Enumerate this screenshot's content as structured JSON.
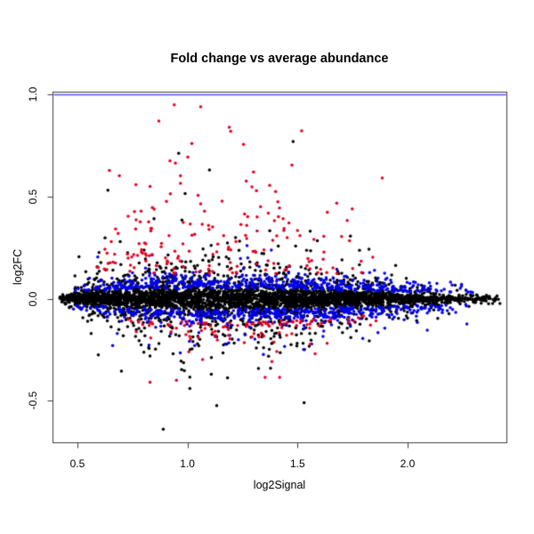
{
  "chart": {
    "title": "Fold change vs average abundance",
    "x_axis": {
      "label": "log2Signal",
      "tick_labels": [
        "0.5",
        "1.0",
        "1.5",
        "2.0"
      ],
      "tick_values": [
        0.5,
        1.0,
        1.5,
        2.0
      ]
    },
    "y_axis": {
      "label": "log2FC",
      "tick_labels": [
        "1.0",
        "0.5",
        "0.0",
        "-0.5"
      ],
      "tick_values": [
        1.0,
        0.5,
        0.0,
        -0.5
      ]
    },
    "reference_line": {
      "y": 1.0,
      "color": "#4d4df2"
    },
    "frame_color": "#3c3c3c",
    "text_color": "#000000"
  },
  "chart_data": {
    "type": "scatter",
    "title": "Fold change vs average abundance",
    "xlabel": "log2Signal",
    "ylabel": "log2FC",
    "xlim": [
      0.387,
      2.449
    ],
    "ylim": [
      -0.704,
      1.014
    ],
    "grid": false,
    "legend": "none",
    "point_radius_px": 1.75,
    "seed": 42,
    "envelope": [
      [
        0.42,
        0.16
      ],
      [
        0.55,
        0.38
      ],
      [
        0.7,
        0.72
      ],
      [
        0.9,
        0.95
      ],
      [
        1.1,
        1.0
      ],
      [
        1.35,
        0.95
      ],
      [
        1.55,
        0.8
      ],
      [
        1.75,
        0.6
      ],
      [
        1.95,
        0.42
      ],
      [
        2.15,
        0.26
      ],
      [
        2.3,
        0.17
      ],
      [
        2.42,
        0.1
      ]
    ],
    "series": [
      {
        "name": "black",
        "color": "#000000",
        "n": 4000,
        "x_density": [
          [
            0.42,
            0.25
          ],
          [
            0.5,
            0.9
          ],
          [
            0.6,
            1.0
          ],
          [
            1.6,
            1.0
          ],
          [
            1.8,
            0.85
          ],
          [
            2.0,
            0.55
          ],
          [
            2.2,
            0.3
          ],
          [
            2.42,
            0.08
          ]
        ],
        "y_model": {
          "kind": "mixture",
          "components": [
            {
              "p": 0.6,
              "sigma": 0.032
            },
            {
              "p": 0.315,
              "sigma": 0.09
            },
            {
              "p": 0.077,
              "sigma": 0.2
            },
            {
              "p": 0.008,
              "sigma": 0.33
            }
          ]
        }
      },
      {
        "name": "blue",
        "color": "#0000ee",
        "n": 1000,
        "x_density": [
          [
            0.48,
            0.15
          ],
          [
            0.6,
            0.5
          ],
          [
            0.8,
            0.8
          ],
          [
            1.0,
            0.95
          ],
          [
            1.2,
            1.0
          ],
          [
            1.7,
            1.0
          ],
          [
            1.9,
            0.8
          ],
          [
            2.05,
            0.5
          ],
          [
            2.3,
            0.12
          ]
        ],
        "y_model": {
          "kind": "band",
          "base": 0.045,
          "sigma": 0.038,
          "jitter": 0.01,
          "scale_min": 0.45,
          "scale_env": 0.6,
          "stray_p": 0.03,
          "stray_min": 0.16,
          "stray_range": 0.12
        }
      },
      {
        "name": "red",
        "color": "#e60020",
        "n": 280,
        "above_fraction": 0.62,
        "x_density_above": [
          [
            0.58,
            0.3
          ],
          [
            0.8,
            0.9
          ],
          [
            1.0,
            1.0
          ],
          [
            1.2,
            0.9
          ],
          [
            1.4,
            0.7
          ],
          [
            1.6,
            0.4
          ],
          [
            1.8,
            0.18
          ],
          [
            2.05,
            0.05
          ]
        ],
        "x_density_below": [
          [
            0.72,
            0.3
          ],
          [
            0.9,
            0.8
          ],
          [
            1.1,
            1.0
          ],
          [
            1.4,
            0.9
          ],
          [
            1.6,
            0.6
          ],
          [
            1.8,
            0.3
          ],
          [
            2.0,
            0.1
          ]
        ],
        "y_model": {
          "kind": "updown",
          "above": {
            "min": 0.12,
            "sigma": 0.26,
            "cap": 0.9,
            "scale_min": 0.45,
            "scale_env": 0.55
          },
          "below": {
            "base": 0.115,
            "sigma": 0.05,
            "deep_p": 0.08,
            "deep_min": 0.25,
            "deep_range": 0.17,
            "scale_min": 0.35,
            "scale_env": 0.65
          }
        }
      }
    ],
    "outliers": [
      {
        "color": "#e60020",
        "points": [
          [
            0.94,
            0.95
          ],
          [
            1.06,
            0.94
          ],
          [
            0.87,
            0.87
          ],
          [
            1.19,
            0.84
          ],
          [
            1.02,
            0.76
          ],
          [
            1.3,
            0.62
          ],
          [
            0.83,
            0.55
          ],
          [
            0.83,
            -0.41
          ],
          [
            0.95,
            -0.4
          ],
          [
            1.58,
            -0.27
          ]
        ]
      },
      {
        "color": "#000000",
        "points": [
          [
            1.48,
            0.77
          ],
          [
            1.1,
            0.63
          ],
          [
            0.89,
            -0.64
          ],
          [
            1.53,
            -0.51
          ]
        ]
      }
    ]
  }
}
